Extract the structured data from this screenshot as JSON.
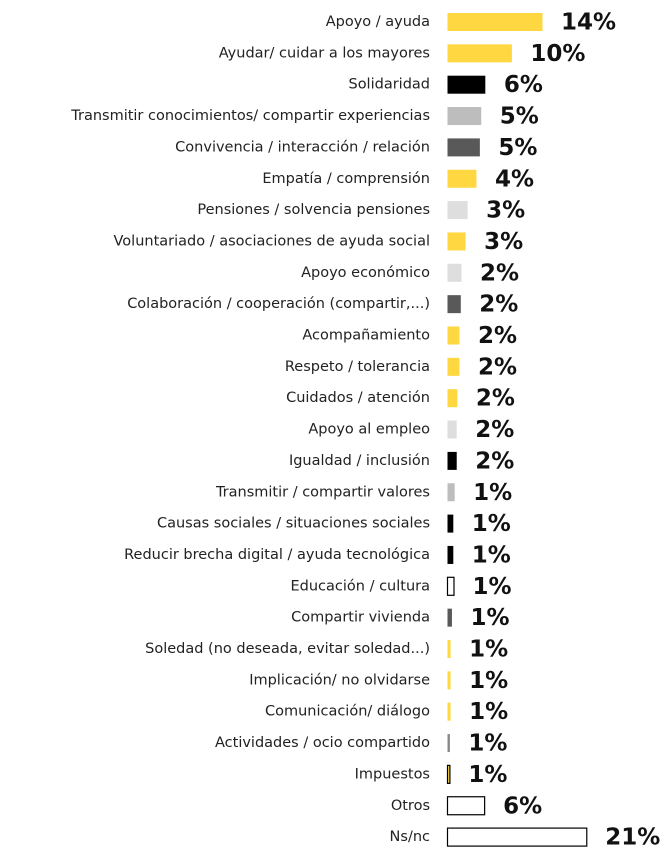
{
  "chart_data": {
    "type": "barh",
    "categories": [
      "Apoyo / ayuda",
      "Ayudar/ cuidar a los mayores",
      "Solidaridad",
      "Transmitir conocimientos/ compartir experiencias",
      "Convivencia / interacción / relación",
      "Empatía / comprensión",
      "Pensiones / solvencia pensiones",
      "Voluntariado / asociaciones de ayuda social",
      "Apoyo económico",
      "Colaboración / cooperación (compartir,...)",
      "Acompañamiento",
      "Respeto / tolerancia",
      "Cuidados / atención",
      "Apoyo al empleo",
      "Igualdad / inclusión",
      "Transmitir / compartir valores",
      "Causas sociales / situaciones sociales",
      "Reducir brecha digital / ayuda tecnológica",
      "Educación / cultura",
      "Compartir vivienda",
      "Soledad (no deseada, evitar soledad...)",
      "Implicación/ no olvidarse",
      "Comunicación/ diálogo",
      "Actividades / ocio compartido",
      "Impuestos",
      "Otros",
      "Ns/nc"
    ],
    "values": [
      14.1,
      9.6,
      5.7,
      5.1,
      4.9,
      4.4,
      3.1,
      2.8,
      2.2,
      2.1,
      1.9,
      1.9,
      1.6,
      1.5,
      1.5,
      1.2,
      1.0,
      1.0,
      1.1,
      0.8,
      0.6,
      0.6,
      0.6,
      0.5,
      0.5,
      5.6,
      20.6
    ],
    "value_labels": [
      "14%",
      "10%",
      "6%",
      "5%",
      "5%",
      "4%",
      "3%",
      "3%",
      "2%",
      "2%",
      "2%",
      "2%",
      "2%",
      "2%",
      "2%",
      "1%",
      "1%",
      "1%",
      "1%",
      "1%",
      "1%",
      "1%",
      "1%",
      "1%",
      "1%",
      "6%",
      "21%"
    ],
    "colors": [
      "#ffd740",
      "#ffd740",
      "#000000",
      "#bdbdbd",
      "#595959",
      "#ffd740",
      "#dedede",
      "#ffd740",
      "#dedede",
      "#595959",
      "#ffd740",
      "#ffd740",
      "#ffd740",
      "#dedede",
      "#000000",
      "#bdbdbd",
      "#000000",
      "#000000",
      "#ffffff",
      "#595959",
      "#ffd740",
      "#ffd740",
      "#ffd740",
      "#888888",
      "#ffd740",
      "#ffffff",
      "#ffffff"
    ],
    "edgecolors": [
      "none",
      "none",
      "none",
      "none",
      "none",
      "none",
      "none",
      "none",
      "none",
      "none",
      "none",
      "none",
      "none",
      "none",
      "none",
      "none",
      "none",
      "none",
      "#000000",
      "none",
      "none",
      "none",
      "none",
      "none",
      "#000000",
      "#000000",
      "#000000"
    ],
    "xlim": [
      0,
      21
    ]
  }
}
